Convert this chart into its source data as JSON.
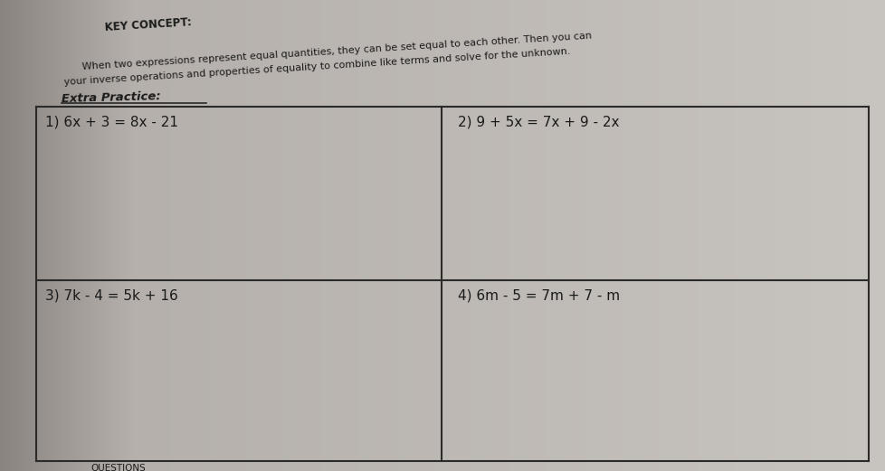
{
  "bg_color_left": "#8a8480",
  "bg_color_mid": "#b5b0ab",
  "bg_color_right": "#c8c4bf",
  "key_concept_title": "KEY CONCEPT:",
  "key_concept_line1": "When two expressions represent equal quantities, they can be set equal to each other. Then you can",
  "key_concept_line2": "your inverse operations and properties of equality to combine like terms and solve for the unknown.",
  "section_title": "Extra Practice:",
  "problems": [
    "1) 6x + 3 = 8x - 21",
    "2) 9 + 5x = 7x + 9 - 2x",
    "3) 7k - 4 = 5k + 16",
    "4) 6m - 5 = 7m + 7 - m"
  ],
  "grid_color": "#2a2a2a",
  "text_color": "#1a1a1a",
  "title_fontsize": 8.5,
  "body_fontsize": 8.0,
  "problem_fontsize": 11.0,
  "section_fontsize": 9.5
}
